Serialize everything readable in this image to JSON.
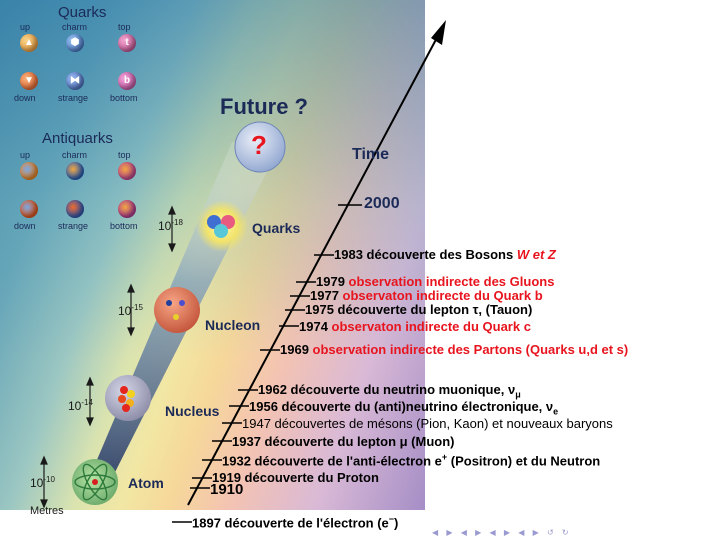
{
  "quarks": {
    "title": "Quarks",
    "top_row": [
      "up",
      "charm",
      "top"
    ],
    "bottom_row": [
      "down",
      "strange",
      "bottom"
    ],
    "ball_letters": {
      "top": "t",
      "bottom": "b"
    }
  },
  "antiquarks": {
    "title": "Antiquarks",
    "top_row": [
      "up",
      "charm",
      "top"
    ],
    "bottom_row": [
      "down",
      "strange",
      "bottom"
    ]
  },
  "scale": {
    "future": "Future ?",
    "question": "?",
    "time": "Time",
    "year_2000": "2000",
    "levels": [
      {
        "name": "Quarks",
        "size_base": "10",
        "size_exp": "-18"
      },
      {
        "name": "Nucleon",
        "size_base": "10",
        "size_exp": "-15"
      },
      {
        "name": "Nucleus",
        "size_base": "10",
        "size_exp": "-14"
      },
      {
        "name": "Atom",
        "size_base": "10",
        "size_exp": "-10"
      }
    ],
    "unit": "Metres"
  },
  "events": [
    {
      "year": "1983",
      "black": "découverte des Bosons ",
      "red": "W et Z"
    },
    {
      "year": "1979",
      "black": "",
      "red": "observation indirecte des Gluons"
    },
    {
      "year": "1977",
      "black": "",
      "red": "observaton indirecte du Quark b"
    },
    {
      "year": "1975",
      "black": "découverte du lepton τ, (Tauon)",
      "red": ""
    },
    {
      "year": "1974",
      "black": "",
      "red": "observaton indirecte du Quark c"
    },
    {
      "year": "1969",
      "black": "",
      "red": "observation indirecte des Partons (Quarks u,d et s)"
    },
    {
      "year": "1962",
      "black": "découverte du neutrino muonique, ν",
      "sub": "μ",
      "red": ""
    },
    {
      "year": "1956",
      "black": "découverte du (anti)neutrino électronique, ν",
      "sub": "e",
      "red": ""
    },
    {
      "year": "1947",
      "black": "découvertes de mésons (Pion, Kaon) et nouveaux baryons",
      "red": ""
    },
    {
      "year": "1937",
      "black": "découverte du lepton μ (Muon)",
      "red": ""
    },
    {
      "year": "1932",
      "black": "découverte de l'anti-électron e",
      "sup": "+",
      "black2": " (Positron) et du Neutron",
      "red": ""
    },
    {
      "year": "1919",
      "black": "découverte du Proton",
      "red": ""
    },
    {
      "year": "1910",
      "black": "",
      "red": ""
    },
    {
      "year": "1897",
      "black": "découverte de l'électron (e",
      "sup": "−",
      "black2": ")",
      "red": ""
    }
  ],
  "colors": {
    "quark_up": "#e8a23a",
    "quark_down": "#e9662a",
    "quark_charm": "#3a6fc4",
    "quark_strange": "#3f64b8",
    "quark_top": "#c24a8f",
    "quark_bottom": "#c2479b",
    "event_red": "#e8141e",
    "text_dark_blue": "#1b2a57"
  }
}
